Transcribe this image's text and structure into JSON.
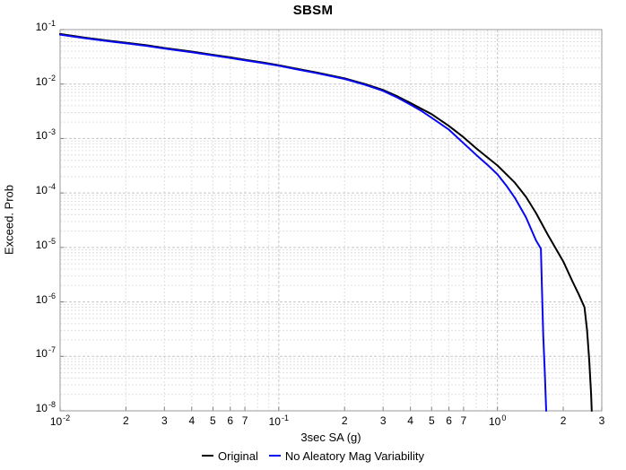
{
  "chart_data": {
    "type": "line",
    "title": "SBSM",
    "xlabel": "3sec SA (g)",
    "ylabel": "Exceed. Prob",
    "xscale": "log",
    "yscale": "log",
    "xlim": [
      0.01,
      3.0
    ],
    "ylim": [
      1e-08,
      0.1
    ],
    "grid": true,
    "legend_position": "bottom",
    "x_ticks": {
      "decade_exponents": [
        -2,
        -1,
        0
      ],
      "minor_labels": [
        0.02,
        0.03,
        0.04,
        0.05,
        0.06,
        0.07,
        0.2,
        0.3,
        0.4,
        0.5,
        0.6,
        0.7,
        2,
        3
      ]
    },
    "y_ticks": {
      "decade_exponents": [
        -1,
        -2,
        -3,
        -4,
        -5,
        -6,
        -7,
        -8
      ]
    },
    "series": [
      {
        "name": "Original",
        "color": "#000000",
        "points": [
          [
            0.01,
            0.083
          ],
          [
            0.013,
            0.071
          ],
          [
            0.017,
            0.062
          ],
          [
            0.02,
            0.0575
          ],
          [
            0.025,
            0.0515
          ],
          [
            0.03,
            0.046
          ],
          [
            0.04,
            0.0395
          ],
          [
            0.05,
            0.0345
          ],
          [
            0.06,
            0.031
          ],
          [
            0.07,
            0.028
          ],
          [
            0.085,
            0.0248
          ],
          [
            0.1,
            0.0222
          ],
          [
            0.12,
            0.0192
          ],
          [
            0.15,
            0.0162
          ],
          [
            0.2,
            0.0127
          ],
          [
            0.25,
            0.0099
          ],
          [
            0.3,
            0.0078
          ],
          [
            0.35,
            0.0059
          ],
          [
            0.4,
            0.0045
          ],
          [
            0.45,
            0.0035
          ],
          [
            0.5,
            0.0028
          ],
          [
            0.6,
            0.0017
          ],
          [
            0.7,
            0.00105
          ],
          [
            0.8,
            0.00066
          ],
          [
            0.9,
            0.00045
          ],
          [
            1.0,
            0.00032
          ],
          [
            1.2,
            0.000155
          ],
          [
            1.35,
            8.5e-05
          ],
          [
            1.5,
            4.3e-05
          ],
          [
            1.7,
            1.7e-05
          ],
          [
            1.85,
            9.5e-06
          ],
          [
            2.0,
            5.5e-06
          ],
          [
            2.2,
            2.4e-06
          ],
          [
            2.35,
            1.4e-06
          ],
          [
            2.5,
            8e-07
          ],
          [
            2.57,
            3e-07
          ],
          [
            2.63,
            8e-08
          ],
          [
            2.68,
            2e-08
          ],
          [
            2.7,
            1e-08
          ]
        ]
      },
      {
        "name": "No Aleatory Mag Variability",
        "color": "#0808f0",
        "points": [
          [
            0.01,
            0.081
          ],
          [
            0.013,
            0.0695
          ],
          [
            0.017,
            0.0605
          ],
          [
            0.02,
            0.056
          ],
          [
            0.025,
            0.05
          ],
          [
            0.03,
            0.045
          ],
          [
            0.04,
            0.0385
          ],
          [
            0.05,
            0.0337
          ],
          [
            0.06,
            0.0302
          ],
          [
            0.07,
            0.0273
          ],
          [
            0.085,
            0.0242
          ],
          [
            0.1,
            0.0217
          ],
          [
            0.12,
            0.0188
          ],
          [
            0.15,
            0.0158
          ],
          [
            0.2,
            0.0124
          ],
          [
            0.25,
            0.0096
          ],
          [
            0.3,
            0.0075
          ],
          [
            0.35,
            0.0056
          ],
          [
            0.4,
            0.0042
          ],
          [
            0.45,
            0.0032
          ],
          [
            0.5,
            0.0024
          ],
          [
            0.6,
            0.00145
          ],
          [
            0.7,
            0.00082
          ],
          [
            0.8,
            0.0005
          ],
          [
            0.9,
            0.00033
          ],
          [
            1.0,
            0.00022
          ],
          [
            1.1,
            0.000135
          ],
          [
            1.2,
            8.2e-05
          ],
          [
            1.35,
            3.6e-05
          ],
          [
            1.5,
            1.35e-05
          ],
          [
            1.58,
            9.5e-06
          ],
          [
            1.6,
            1.5e-06
          ],
          [
            1.62,
            2.5e-07
          ],
          [
            1.65,
            4e-08
          ],
          [
            1.67,
            1e-08
          ]
        ]
      }
    ]
  }
}
